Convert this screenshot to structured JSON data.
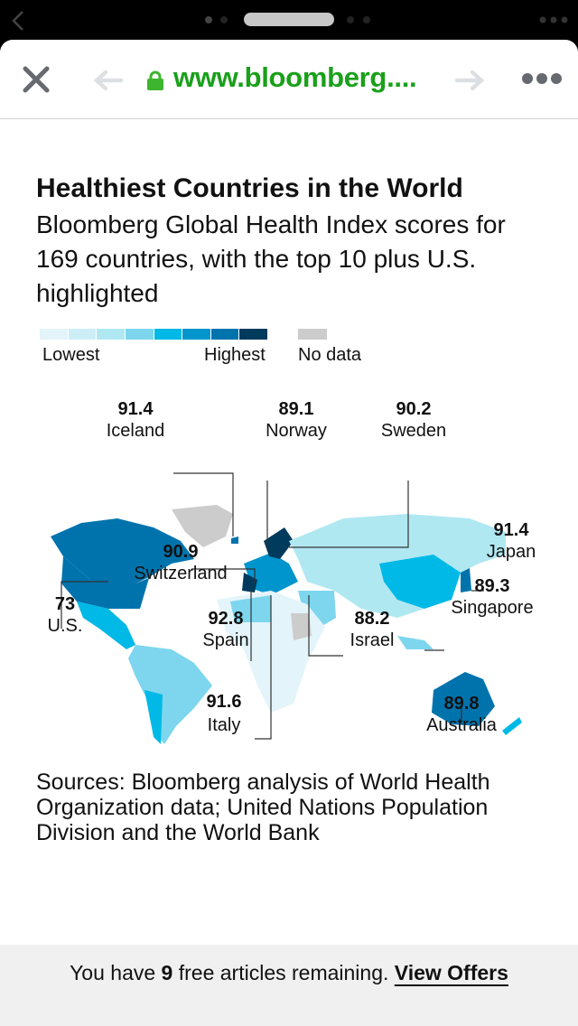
{
  "browser": {
    "url": "www.bloomberg....",
    "icons": [
      "back-chevron-icon",
      "close-icon",
      "back-arrow-icon",
      "lock-icon",
      "forward-arrow-icon",
      "more-icon"
    ]
  },
  "article": {
    "title": "Healthiest Countries in the World",
    "subtitle": "Bloomberg Global Health Index scores for 169 countries, with the top 10 plus U.S. highlighted",
    "legend": {
      "low": "Lowest",
      "high": "Highest",
      "nodata": "No data",
      "colors": [
        "#e3f4fa",
        "#cdeef7",
        "#b0e8f2",
        "#7dd6ee",
        "#00b9e6",
        "#0095cc",
        "#0073ad",
        "#003a5c"
      ],
      "nodata_color": "#cccccc"
    },
    "countries": [
      {
        "name": "Iceland",
        "score": "91.4"
      },
      {
        "name": "Norway",
        "score": "89.1"
      },
      {
        "name": "Sweden",
        "score": "90.2"
      },
      {
        "name": "Switzerland",
        "score": "90.9"
      },
      {
        "name": "Japan",
        "score": "91.4"
      },
      {
        "name": "Singapore",
        "score": "89.3"
      },
      {
        "name": "U.S.",
        "score": "73"
      },
      {
        "name": "Spain",
        "score": "92.8"
      },
      {
        "name": "Israel",
        "score": "88.2"
      },
      {
        "name": "Italy",
        "score": "91.6"
      },
      {
        "name": "Australia",
        "score": "89.8"
      }
    ],
    "sources": "Sources: Bloomberg analysis of World Health Organization data; United Nations Population Division and the World Bank"
  },
  "footer": {
    "prefix": "You have ",
    "count": "9",
    "suffix": " free articles remaining. ",
    "link": "View Offers"
  }
}
